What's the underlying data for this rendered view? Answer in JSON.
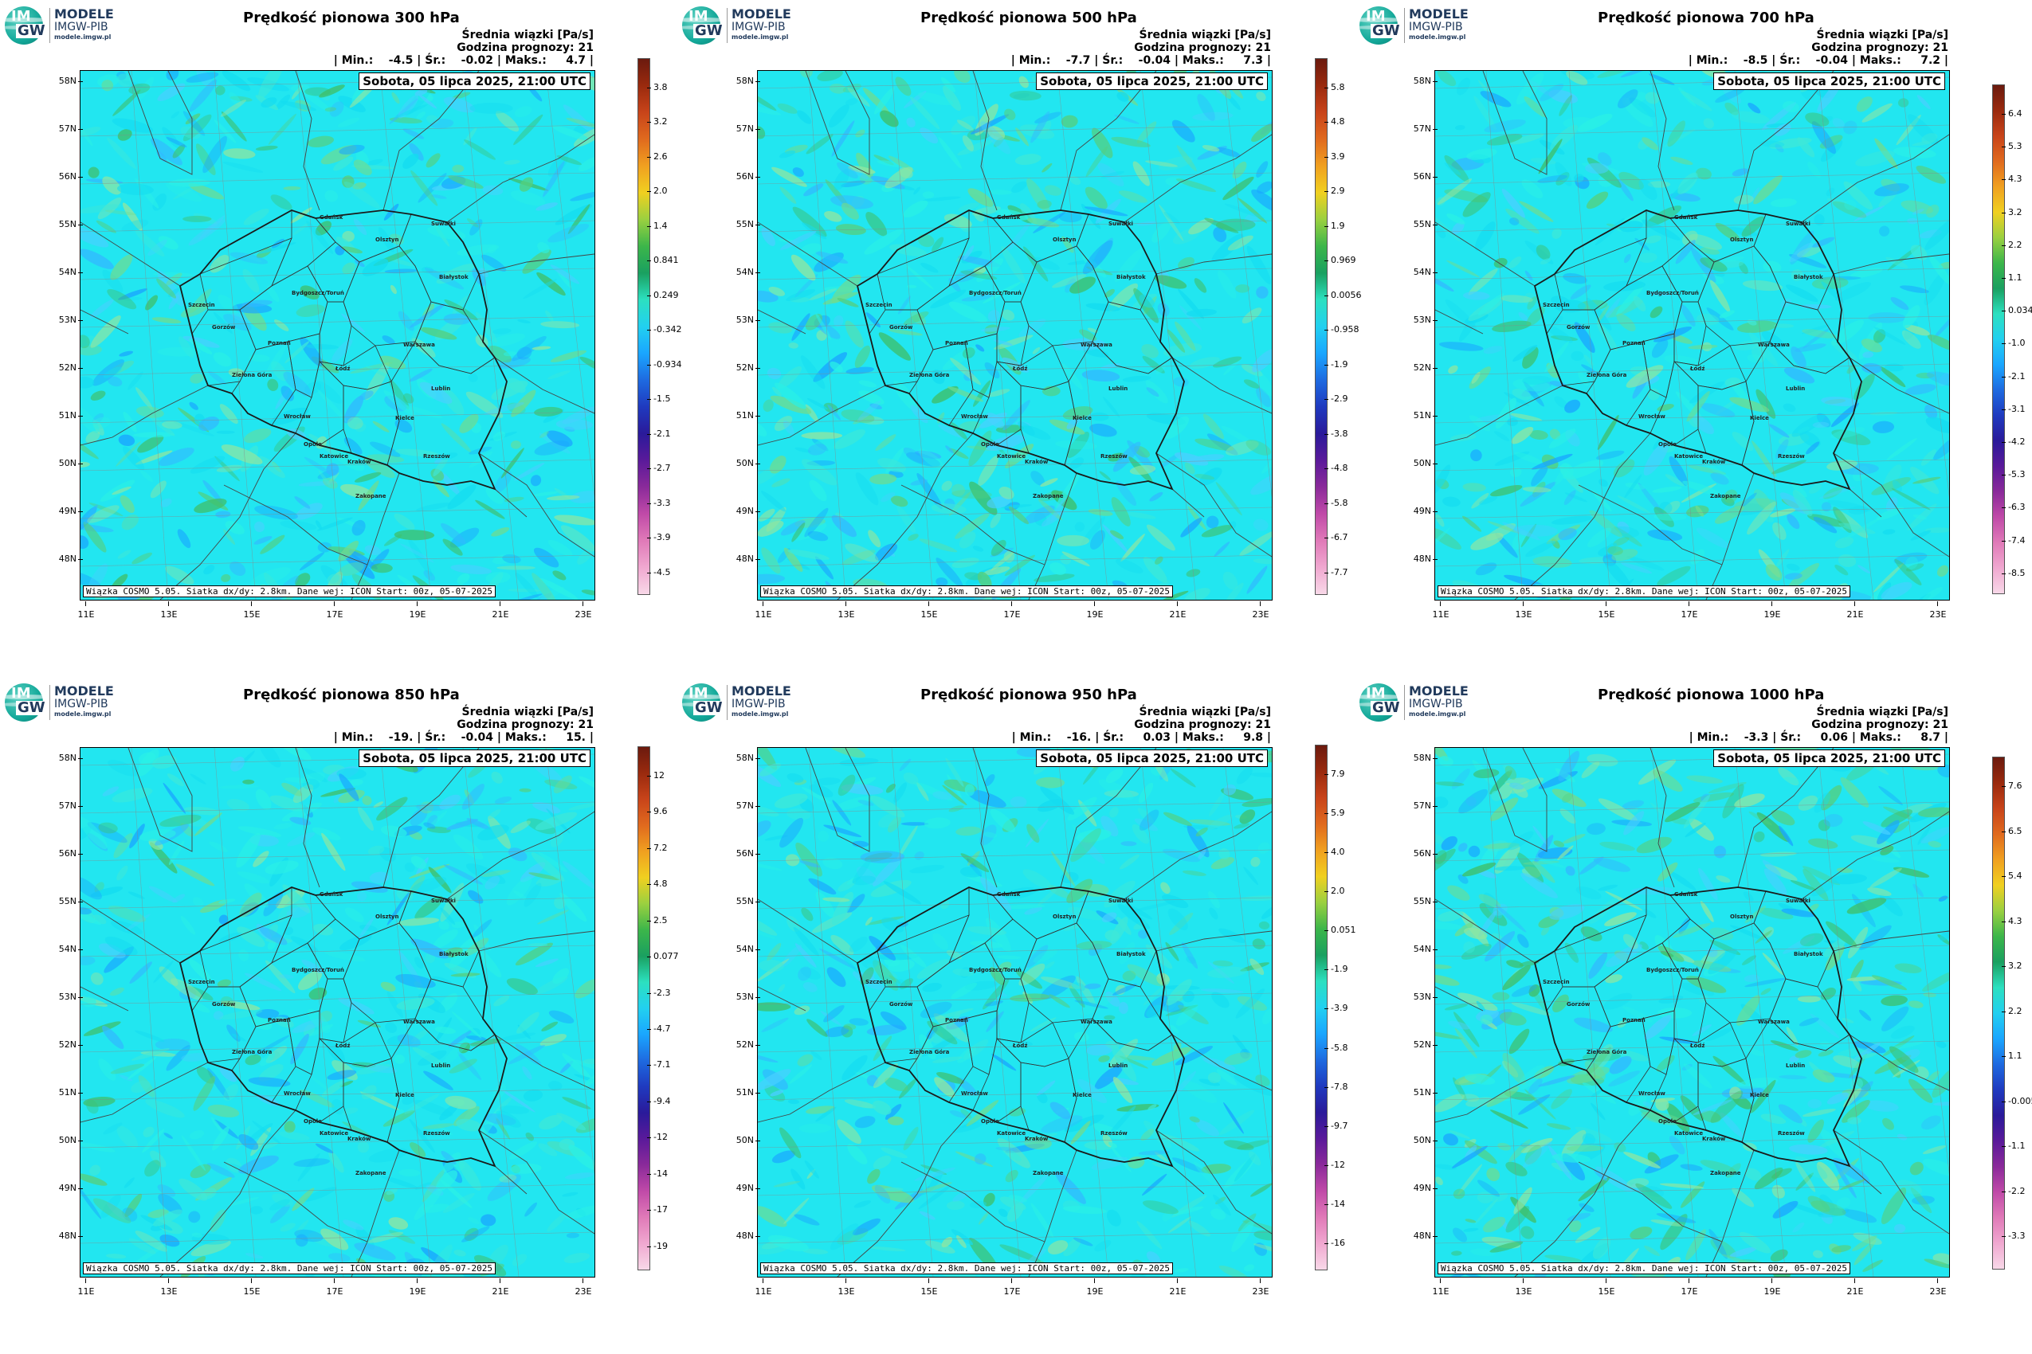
{
  "logo": {
    "line1": "MODELE",
    "line2": "IMGW-PIB",
    "line3": "modele.imgw.pl",
    "im": "IM",
    "gw": "GW"
  },
  "common": {
    "date_label": "Sobota, 05 lipca 2025, 21:00 UTC",
    "subtitle": "Średnia wiązki [Pa/s]",
    "forecast_hour": "Godzina prognozy: 21",
    "footer": "Wiązka COSMO 5.05. Siatka dx/dy: 2.8km. Dane wej: ICON Start: 00z, 05-07-2025",
    "lat_labels": [
      "58N",
      "57N",
      "56N",
      "55N",
      "54N",
      "53N",
      "52N",
      "51N",
      "50N",
      "49N",
      "48N"
    ],
    "lon_labels": [
      "11E",
      "13E",
      "15E",
      "17E",
      "19E",
      "21E",
      "23E"
    ]
  },
  "cities": [
    "Gdańsk",
    "Olsztyn",
    "Suwałki",
    "Białystok",
    "Szczecin",
    "Bydgoszcz/Toruń",
    "Gorzów",
    "Poznań",
    "Warszawa",
    "Zielona Góra",
    "Łódź",
    "Lublin",
    "Wrocław",
    "Kielce",
    "Opole",
    "Katowice",
    "Kraków",
    "Rzeszów",
    "Zakopane"
  ],
  "panels": [
    {
      "title": "Prędkość pionowa 300 hPa",
      "stats": "| Min.:    -4.5 | Śr.:    -0.02 | Maks.:     4.7 |",
      "cbar_labels": [
        "3.8",
        "3.2",
        "2.6",
        "2.0",
        "1.4",
        "0.841",
        "0.249",
        "-0.342",
        "-0.934",
        "-1.5",
        "-2.1",
        "-2.7",
        "-3.3",
        "-3.9",
        "-4.5"
      ],
      "min": -4.5,
      "max": 4.7
    },
    {
      "title": "Prędkość pionowa 500 hPa",
      "stats": "| Min.:    -7.7 | Śr.:    -0.04 | Maks.:     7.3 |",
      "cbar_labels": [
        "5.8",
        "4.8",
        "3.9",
        "2.9",
        "1.9",
        "0.969",
        "0.0056",
        "-0.958",
        "-1.9",
        "-2.9",
        "-3.8",
        "-4.8",
        "-5.8",
        "-6.7",
        "-7.7"
      ],
      "min": -7.7,
      "max": 7.3
    },
    {
      "title": "Prędkość pionowa 700 hPa",
      "stats": "| Min.:    -8.5 | Śr.:    -0.04 | Maks.:     7.2 |",
      "cbar_labels": [
        "6.4",
        "5.3",
        "4.3",
        "3.2",
        "2.2",
        "1.1",
        "0.034",
        "-1.0",
        "-2.1",
        "-3.1",
        "-4.2",
        "-5.3",
        "-6.3",
        "-7.4",
        "-8.5"
      ],
      "min": -8.5,
      "max": 7.2
    },
    {
      "title": "Prędkość pionowa 850 hPa",
      "stats": "| Min.:    -19. | Śr.:    -0.04 | Maks.:     15. |",
      "cbar_labels": [
        "12",
        "9.6",
        "7.2",
        "4.8",
        "2.5",
        "0.077",
        "-2.3",
        "-4.7",
        "-7.1",
        "-9.4",
        "-12",
        "-14",
        "-17",
        "-19"
      ],
      "min": -19,
      "max": 15
    },
    {
      "title": "Prędkość pionowa 950 hPa",
      "stats": "| Min.:    -16. | Śr.:     0.03 | Maks.:     9.8 |",
      "cbar_labels": [
        "7.9",
        "5.9",
        "4.0",
        "2.0",
        "0.051",
        "-1.9",
        "-3.9",
        "-5.8",
        "-7.8",
        "-9.7",
        "-12",
        "-14",
        "-16"
      ],
      "min": -16,
      "max": 9.8
    },
    {
      "title": "Prędkość pionowa 1000 hPa",
      "stats": "| Min.:    -3.3 | Śr.:     0.06 | Maks.:     8.7 |",
      "cbar_labels": [
        "7.6",
        "6.5",
        "5.4",
        "4.3",
        "3.2",
        "2.2",
        "1.1",
        "-0.005",
        "-1.1",
        "-2.2",
        "-3.3"
      ],
      "min": -3.3,
      "max": 8.7
    }
  ],
  "colors": {
    "field_base": "#22e6f0",
    "field_green": "#5fd98a",
    "border": "#1a1a1a",
    "grid": "#888888"
  }
}
